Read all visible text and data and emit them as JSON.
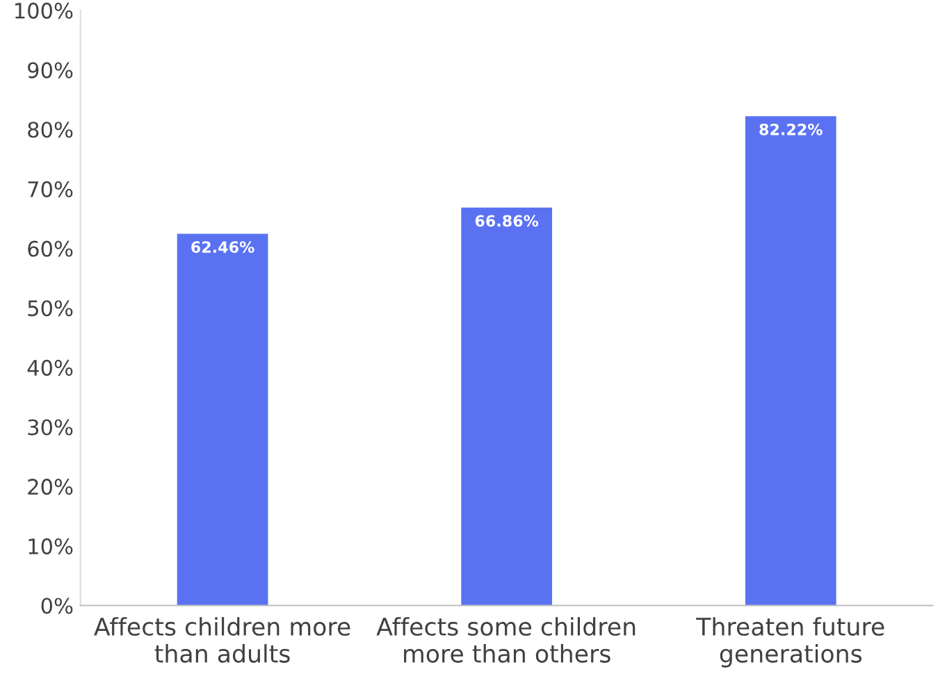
{
  "chart_data": {
    "type": "bar",
    "categories": [
      "Affects children more\nthan adults",
      "Affects some children\nmore than others",
      "Threaten future\ngenerations"
    ],
    "values": [
      62.46,
      66.86,
      82.22
    ],
    "value_labels": [
      "62.46%",
      "66.86%",
      "82.22%"
    ],
    "color": "#5a72f2",
    "ylim": [
      0,
      100
    ],
    "yticks": [
      {
        "value": 0,
        "label": "0%"
      },
      {
        "value": 10,
        "label": "10%"
      },
      {
        "value": 20,
        "label": "20%"
      },
      {
        "value": 30,
        "label": "30%"
      },
      {
        "value": 40,
        "label": "40%"
      },
      {
        "value": 50,
        "label": "50%"
      },
      {
        "value": 60,
        "label": "60%"
      },
      {
        "value": 70,
        "label": "70%"
      },
      {
        "value": 80,
        "label": "80%"
      },
      {
        "value": 90,
        "label": "90%"
      },
      {
        "value": 100,
        "label": "100%"
      }
    ],
    "grid": false,
    "legend": false
  }
}
